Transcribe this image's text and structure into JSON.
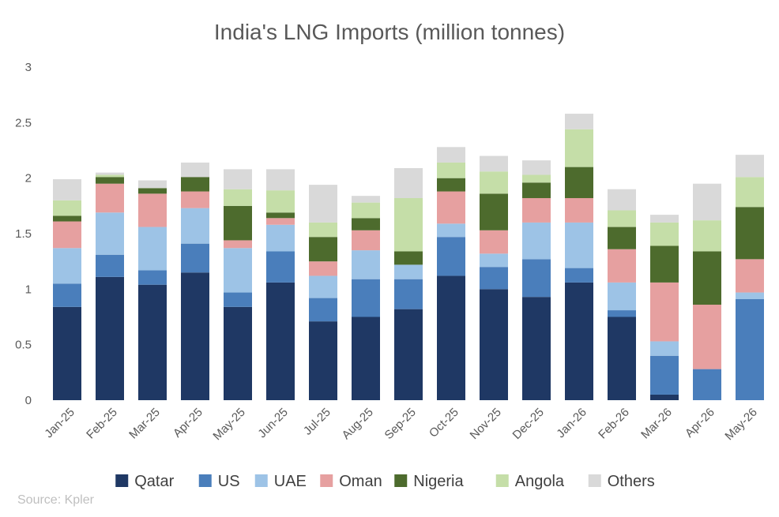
{
  "chart_data": {
    "type": "bar",
    "stacked": true,
    "title": "India's LNG Imports (million tonnes)",
    "xlabel": "",
    "ylabel": "",
    "ylim": [
      0,
      3
    ],
    "yticks": [
      0,
      0.5,
      1,
      1.5,
      2,
      2.5,
      3
    ],
    "ytick_labels": [
      "0",
      "0.5",
      "1",
      "1.5",
      "2",
      "2.5",
      "3"
    ],
    "grid": false,
    "legend_position": "bottom",
    "categories": [
      "Jan-25",
      "Feb-25",
      "Mar-25",
      "Apr-25",
      "May-25",
      "Jun-25",
      "Jul-25",
      "Aug-25",
      "Sep-25",
      "Oct-25",
      "Nov-25",
      "Dec-25",
      "Jan-26",
      "Feb-26",
      "Mar-26",
      "Apr-26",
      "May-26"
    ],
    "series": [
      {
        "name": "Qatar",
        "color": "#1f3864",
        "values": [
          0.84,
          1.11,
          1.04,
          1.15,
          0.84,
          1.06,
          0.71,
          0.75,
          0.82,
          1.12,
          1.0,
          0.93,
          1.06,
          0.75,
          0.05,
          0.0,
          0.0
        ]
      },
      {
        "name": "US",
        "color": "#4a7ebb",
        "values": [
          0.21,
          0.2,
          0.13,
          0.26,
          0.13,
          0.28,
          0.21,
          0.34,
          0.27,
          0.35,
          0.2,
          0.34,
          0.13,
          0.06,
          0.35,
          0.28,
          0.91
        ]
      },
      {
        "name": "UAE",
        "color": "#9dc3e6",
        "values": [
          0.32,
          0.38,
          0.39,
          0.32,
          0.4,
          0.24,
          0.2,
          0.26,
          0.13,
          0.12,
          0.12,
          0.33,
          0.41,
          0.25,
          0.13,
          0.0,
          0.06
        ]
      },
      {
        "name": "Oman",
        "color": "#e6a0a0",
        "values": [
          0.24,
          0.26,
          0.3,
          0.15,
          0.07,
          0.06,
          0.13,
          0.18,
          0.0,
          0.29,
          0.21,
          0.22,
          0.22,
          0.3,
          0.53,
          0.58,
          0.3
        ]
      },
      {
        "name": "Nigeria",
        "color": "#4d6b2d",
        "values": [
          0.05,
          0.06,
          0.05,
          0.13,
          0.31,
          0.05,
          0.22,
          0.11,
          0.12,
          0.12,
          0.33,
          0.14,
          0.28,
          0.2,
          0.33,
          0.48,
          0.47
        ]
      },
      {
        "name": "Angola",
        "color": "#c5dea8",
        "values": [
          0.14,
          0.02,
          0.0,
          0.0,
          0.15,
          0.2,
          0.13,
          0.14,
          0.48,
          0.14,
          0.2,
          0.07,
          0.34,
          0.15,
          0.21,
          0.28,
          0.27
        ]
      },
      {
        "name": "Others",
        "color": "#d9d9d9",
        "values": [
          0.19,
          0.02,
          0.07,
          0.13,
          0.18,
          0.19,
          0.34,
          0.06,
          0.27,
          0.14,
          0.14,
          0.13,
          0.14,
          0.19,
          0.07,
          0.33,
          0.2
        ]
      }
    ],
    "source": "Source: Kpler"
  }
}
